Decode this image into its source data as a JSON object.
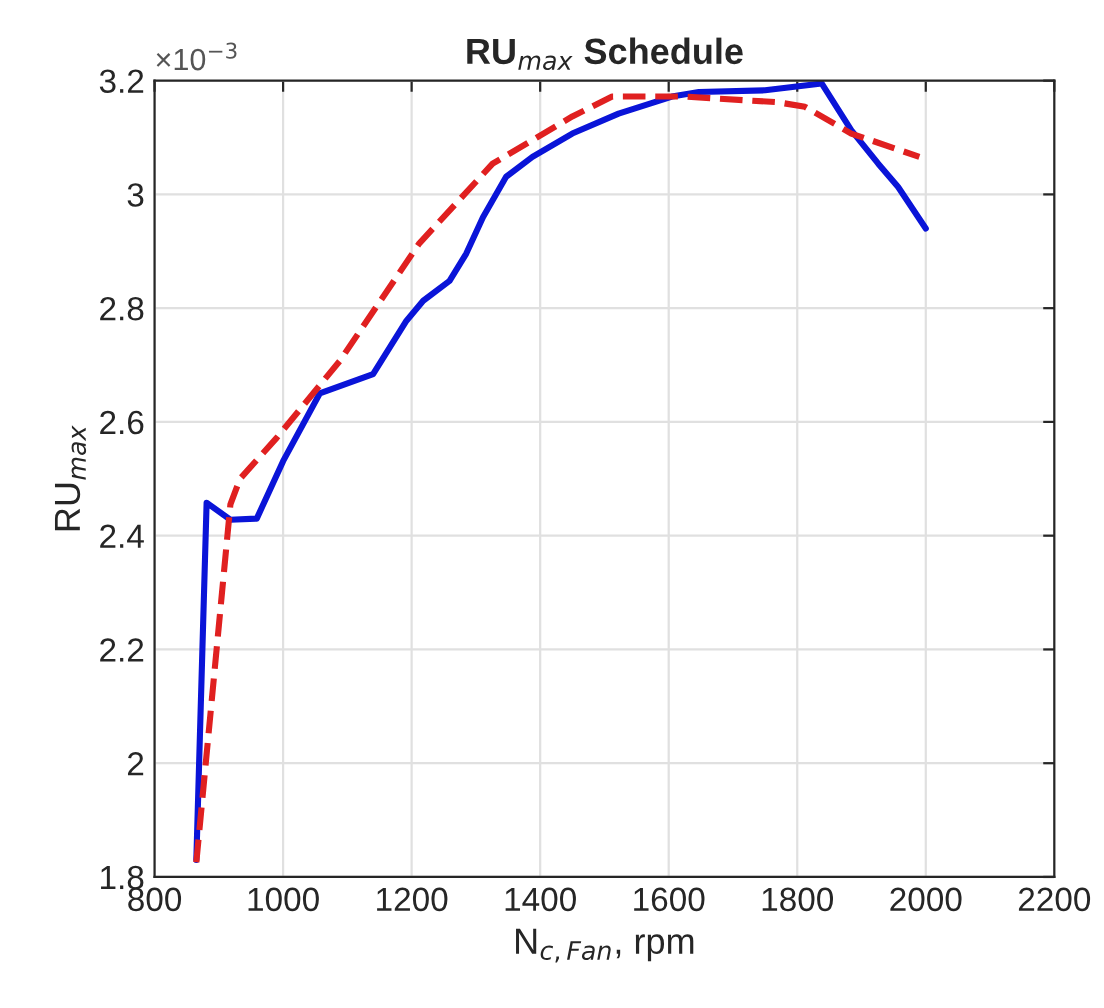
{
  "chart_data": {
    "type": "line",
    "title": "RU$_{max}$ Schedule",
    "xlabel": "N$_{c,Fan}$, rpm",
    "ylabel": "RU$_{max}$",
    "annotations": [
      "×10$^{−3}$"
    ],
    "xlim": [
      800,
      2200
    ],
    "xticks": [
      800,
      1000,
      1200,
      1400,
      1600,
      1800,
      2000,
      2200
    ],
    "ylim": [
      1.8,
      3.2
    ],
    "yticks": [
      1.8,
      2,
      2.2,
      2.4,
      2.6,
      2.8,
      3,
      3.2
    ],
    "grid": true,
    "legend": false,
    "series": [
      {
        "color": "#0a14d8",
        "line_style": "solid",
        "x": [
          865,
          881,
          918,
          959,
          1000,
          1057,
          1140,
          1192,
          1218,
          1259,
          1285,
          1311,
          1347,
          1388,
          1450,
          1522,
          1605,
          1647,
          1750,
          1838,
          1884,
          1926,
          1957,
          2000
        ],
        "values": [
          1.83,
          2.458,
          2.428,
          2.43,
          2.531,
          2.65,
          2.684,
          2.778,
          2.813,
          2.848,
          2.896,
          2.96,
          3.031,
          3.066,
          3.107,
          3.142,
          3.172,
          3.18,
          3.183,
          3.195,
          3.113,
          3.054,
          3.013,
          2.94
        ]
      },
      {
        "color": "#e02020",
        "line_style": "dashed",
        "x": [
          865,
          918,
          933,
          990,
          1088,
          1212,
          1326,
          1450,
          1512,
          1626,
          1770,
          1812,
          1884,
          1990
        ],
        "values": [
          1.826,
          2.455,
          2.5,
          2.572,
          2.707,
          2.914,
          3.054,
          3.137,
          3.172,
          3.172,
          3.162,
          3.154,
          3.107,
          3.066
        ]
      }
    ]
  }
}
